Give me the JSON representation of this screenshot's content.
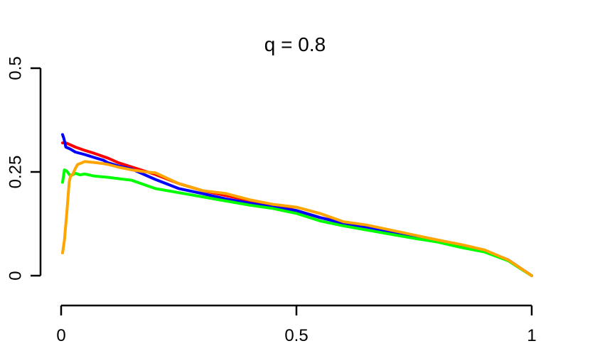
{
  "chart_data": {
    "type": "line",
    "title": "q = 0.8",
    "xlabel": "",
    "ylabel": "",
    "xlim": [
      0,
      1
    ],
    "ylim": [
      0,
      0.5
    ],
    "x_ticks": [
      {
        "value": 0,
        "label": "0"
      },
      {
        "value": 0.5,
        "label": "0.5"
      },
      {
        "value": 1,
        "label": "1"
      }
    ],
    "y_ticks": [
      {
        "value": 0,
        "label": "0"
      },
      {
        "value": 0.25,
        "label": "0.25"
      },
      {
        "value": 0.5,
        "label": "0.5"
      }
    ],
    "grid": false,
    "legend": "none",
    "series": [
      {
        "color": "#ff0000",
        "x": [
          0.003,
          0.01,
          0.02,
          0.03,
          0.05,
          0.07,
          0.09,
          0.1,
          0.12,
          0.15,
          0.2,
          0.25,
          0.3,
          0.35,
          0.4,
          0.45,
          0.5,
          0.55,
          0.6,
          0.65,
          0.7,
          0.75,
          0.8,
          0.85,
          0.9,
          0.95,
          0.98,
          1.0
        ],
        "y": [
          0.32,
          0.32,
          0.315,
          0.31,
          0.302,
          0.295,
          0.287,
          0.283,
          0.273,
          0.262,
          0.244,
          0.222,
          0.205,
          0.193,
          0.181,
          0.17,
          0.157,
          0.14,
          0.128,
          0.118,
          0.108,
          0.097,
          0.086,
          0.074,
          0.06,
          0.037,
          0.015,
          0.0
        ]
      },
      {
        "color": "#0000ff",
        "x": [
          0.003,
          0.006,
          0.01,
          0.02,
          0.03,
          0.05,
          0.07,
          0.09,
          0.1,
          0.12,
          0.15,
          0.2,
          0.25,
          0.3,
          0.35,
          0.4,
          0.45,
          0.5,
          0.55,
          0.6,
          0.65,
          0.7,
          0.75,
          0.8,
          0.85,
          0.9,
          0.95,
          0.98,
          1.0
        ],
        "y": [
          0.34,
          0.33,
          0.31,
          0.305,
          0.298,
          0.292,
          0.285,
          0.278,
          0.272,
          0.265,
          0.257,
          0.232,
          0.21,
          0.198,
          0.185,
          0.175,
          0.165,
          0.157,
          0.14,
          0.126,
          0.117,
          0.106,
          0.095,
          0.085,
          0.073,
          0.06,
          0.038,
          0.015,
          0.0
        ]
      },
      {
        "color": "#00ff00",
        "x": [
          0.003,
          0.007,
          0.012,
          0.02,
          0.03,
          0.04,
          0.05,
          0.07,
          0.09,
          0.1,
          0.12,
          0.15,
          0.2,
          0.25,
          0.3,
          0.35,
          0.4,
          0.45,
          0.5,
          0.55,
          0.6,
          0.65,
          0.7,
          0.75,
          0.8,
          0.85,
          0.9,
          0.95,
          0.98,
          1.0
        ],
        "y": [
          0.225,
          0.255,
          0.252,
          0.24,
          0.247,
          0.243,
          0.245,
          0.24,
          0.238,
          0.237,
          0.234,
          0.23,
          0.21,
          0.2,
          0.19,
          0.18,
          0.17,
          0.162,
          0.15,
          0.132,
          0.12,
          0.11,
          0.1,
          0.09,
          0.081,
          0.068,
          0.057,
          0.036,
          0.014,
          0.0
        ]
      },
      {
        "color": "#ffa500",
        "x": [
          0.003,
          0.007,
          0.012,
          0.017,
          0.02,
          0.025,
          0.03,
          0.035,
          0.04,
          0.05,
          0.07,
          0.09,
          0.1,
          0.12,
          0.15,
          0.18,
          0.2,
          0.25,
          0.3,
          0.35,
          0.4,
          0.45,
          0.5,
          0.55,
          0.6,
          0.65,
          0.7,
          0.75,
          0.8,
          0.85,
          0.9,
          0.95,
          0.98,
          1.0
        ],
        "y": [
          0.055,
          0.085,
          0.15,
          0.225,
          0.24,
          0.245,
          0.258,
          0.268,
          0.27,
          0.275,
          0.273,
          0.27,
          0.268,
          0.262,
          0.255,
          0.25,
          0.248,
          0.222,
          0.205,
          0.198,
          0.183,
          0.172,
          0.165,
          0.15,
          0.13,
          0.122,
          0.11,
          0.098,
          0.086,
          0.075,
          0.062,
          0.038,
          0.015,
          0.0
        ]
      }
    ]
  }
}
